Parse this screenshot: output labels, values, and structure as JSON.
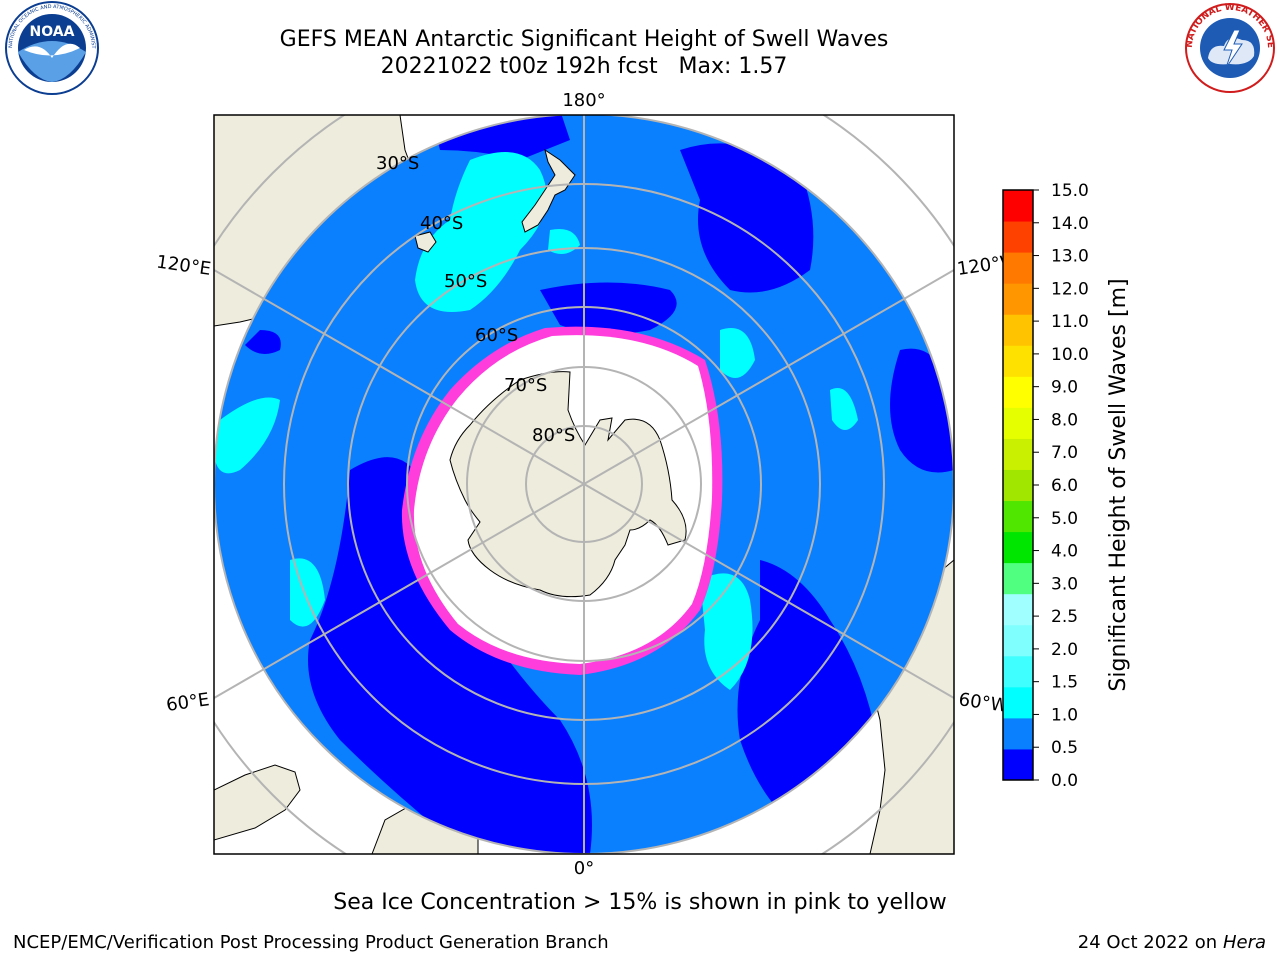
{
  "header": {
    "title_line1": "GEFS MEAN Antarctic Significant Height of Swell Waves",
    "title_line2": "20221022 t00z 192h fcst   Max: 1.57"
  },
  "logos": {
    "noaa_text": "NOAA",
    "noaa_ring_text": "NATIONAL OCEANIC AND ATMOSPHERIC ADMINISTRATION · U.S. DEPARTMENT OF COMMERCE",
    "nws_ring_text": "NATIONAL WEATHER SERVICE"
  },
  "map": {
    "projection": "south-polar-stereographic",
    "lon_labels": {
      "top": "180°",
      "bottom": "0°",
      "upper_left": "120°E",
      "upper_right": "120°W",
      "lower_left": "60°E",
      "lower_right": "60°W"
    },
    "lat_labels": [
      "30°S",
      "40°S",
      "50°S",
      "60°S",
      "70°S",
      "80°S"
    ],
    "colors": {
      "ocean_base": "#0a80ff",
      "land": "#eeecdc",
      "sea_ice": "#ffffff",
      "ice_edge": "#ff3cdc",
      "grid": "#b4b4b4"
    }
  },
  "colorbar": {
    "label": "Significant Height of Swell Waves [m]",
    "ticks": [
      "0.0",
      "0.5",
      "1.0",
      "1.5",
      "2.0",
      "2.5",
      "3.0",
      "4.0",
      "5.0",
      "6.0",
      "7.0",
      "8.0",
      "9.0",
      "10.0",
      "11.0",
      "12.0",
      "13.0",
      "14.0",
      "15.0"
    ],
    "colors": [
      "#0000ff",
      "#0a80ff",
      "#00ffff",
      "#40ffff",
      "#80ffff",
      "#a0ffff",
      "#50ff80",
      "#00e600",
      "#50e600",
      "#a0e600",
      "#c8f000",
      "#e6ff00",
      "#ffff00",
      "#ffe100",
      "#ffc300",
      "#ff9600",
      "#ff7800",
      "#ff4100",
      "#ff0000"
    ]
  },
  "caption": "Sea Ice Concentration > 15% is shown in pink to yellow",
  "footer": {
    "left": "NCEP/EMC/Verification Post Processing Product Generation Branch",
    "right_prefix": "24 Oct 2022 on ",
    "right_host": "Hera"
  }
}
